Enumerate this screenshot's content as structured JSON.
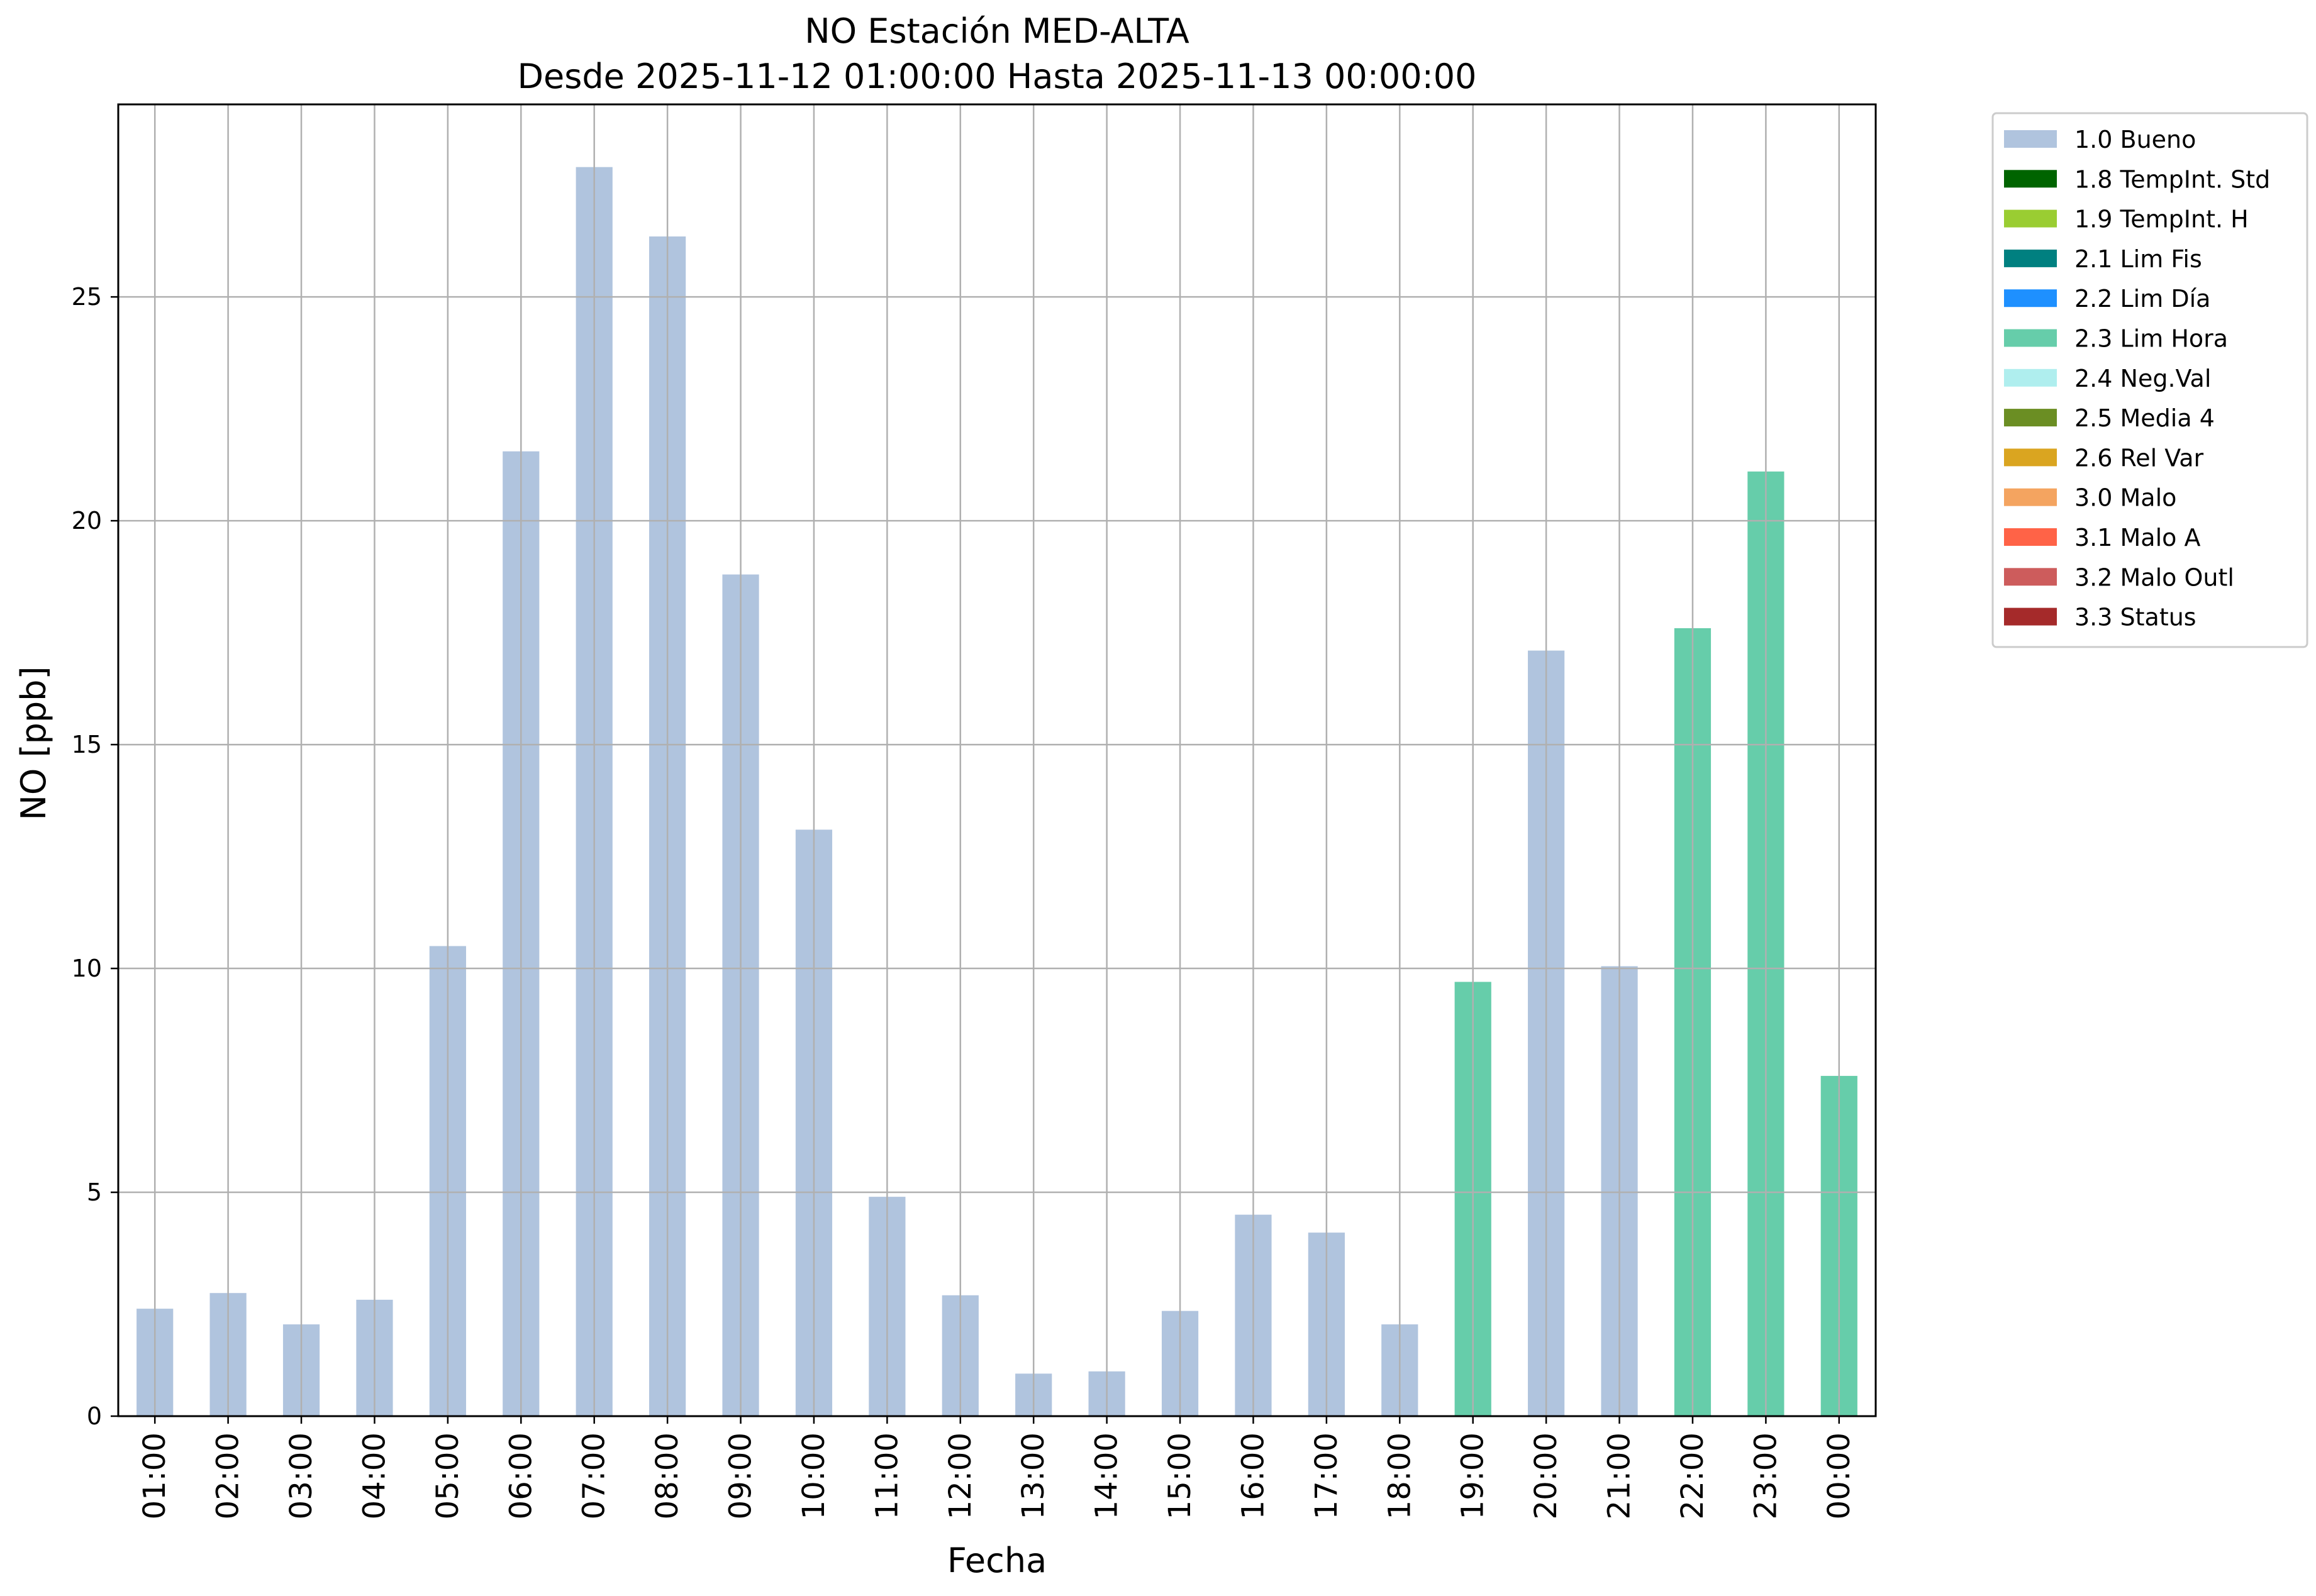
{
  "chart_data": {
    "type": "bar",
    "title": "NO Estación MED-ALTA",
    "subtitle": "Desde 2025-11-12 01:00:00 Hasta 2025-11-13 00:00:00",
    "xlabel": "Fecha",
    "ylabel": "NO [ppb]",
    "ylim": [
      0,
      29.3
    ],
    "yticks": [
      0,
      5,
      10,
      15,
      20,
      25
    ],
    "grid": true,
    "legend_position": "outside-right-top",
    "categories": [
      "01:00",
      "02:00",
      "03:00",
      "04:00",
      "05:00",
      "06:00",
      "07:00",
      "08:00",
      "09:00",
      "10:00",
      "11:00",
      "12:00",
      "13:00",
      "14:00",
      "15:00",
      "16:00",
      "17:00",
      "18:00",
      "19:00",
      "20:00",
      "21:00",
      "22:00",
      "23:00",
      "00:00"
    ],
    "values": [
      2.4,
      2.75,
      2.05,
      2.6,
      10.5,
      21.55,
      27.9,
      26.35,
      18.8,
      13.1,
      4.9,
      2.7,
      0.95,
      1.0,
      2.35,
      4.5,
      4.1,
      2.05,
      9.7,
      17.1,
      10.05,
      17.6,
      21.1,
      7.6
    ],
    "value_flags": [
      "1.0 Bueno",
      "1.0 Bueno",
      "1.0 Bueno",
      "1.0 Bueno",
      "1.0 Bueno",
      "1.0 Bueno",
      "1.0 Bueno",
      "1.0 Bueno",
      "1.0 Bueno",
      "1.0 Bueno",
      "1.0 Bueno",
      "1.0 Bueno",
      "1.0 Bueno",
      "1.0 Bueno",
      "1.0 Bueno",
      "1.0 Bueno",
      "1.0 Bueno",
      "1.0 Bueno",
      "2.3 Lim Hora",
      "1.0 Bueno",
      "1.0 Bueno",
      "2.3 Lim Hora",
      "2.3 Lim Hora",
      "2.3 Lim Hora"
    ],
    "legend": [
      {
        "label": "1.0 Bueno",
        "color": "#b0c4de"
      },
      {
        "label": "1.8 TempInt. Std",
        "color": "#006400"
      },
      {
        "label": "1.9 TempInt. H",
        "color": "#9acd32"
      },
      {
        "label": "2.1 Lim Fis",
        "color": "#008080"
      },
      {
        "label": "2.2 Lim Día",
        "color": "#1e90ff"
      },
      {
        "label": "2.3 Lim Hora",
        "color": "#66cdaa"
      },
      {
        "label": "2.4 Neg.Val",
        "color": "#afeeee"
      },
      {
        "label": "2.5 Media 4",
        "color": "#6b8e23"
      },
      {
        "label": "2.6 Rel Var",
        "color": "#daa520"
      },
      {
        "label": "3.0 Malo",
        "color": "#f4a460"
      },
      {
        "label": "3.1 Malo A",
        "color": "#ff6347"
      },
      {
        "label": "3.2 Malo Outl",
        "color": "#cd5c5c"
      },
      {
        "label": "3.3 Status",
        "color": "#a52a2a"
      }
    ]
  }
}
